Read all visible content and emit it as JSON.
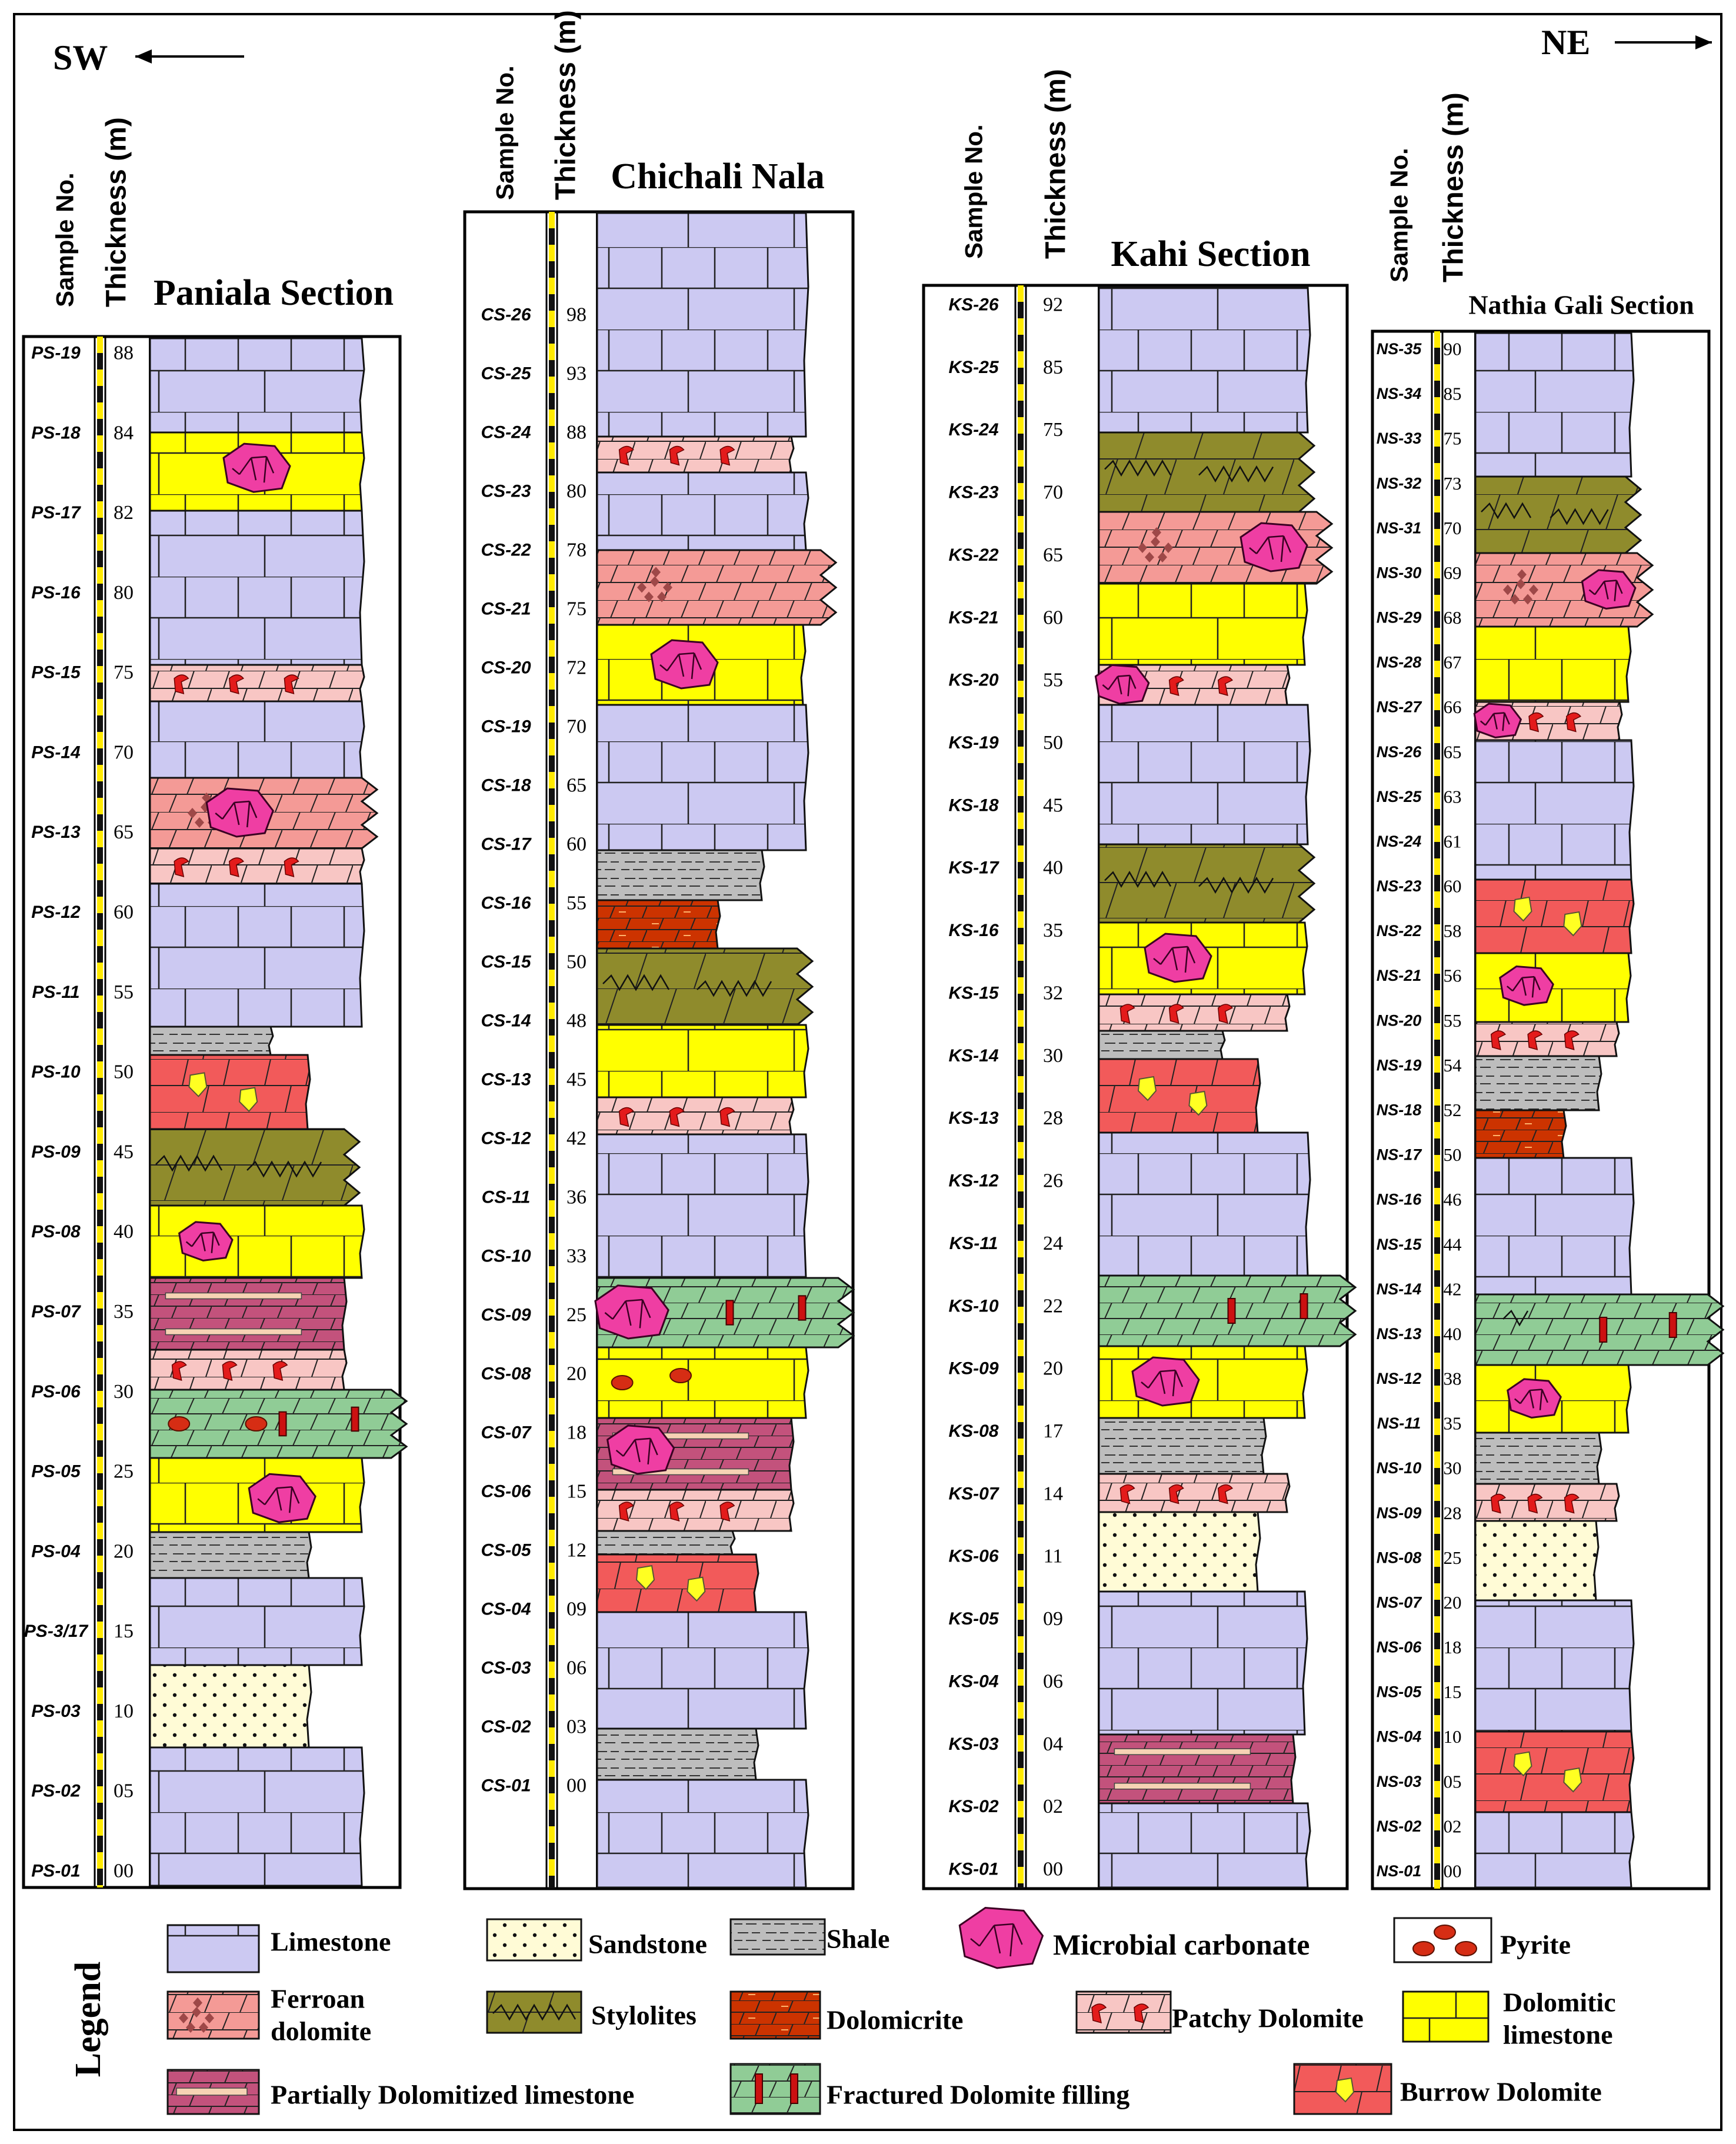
{
  "direction": {
    "left": "SW",
    "right": "NE"
  },
  "header_labels": {
    "sample_no": "Sample No.",
    "thickness": "Thickness (m)"
  },
  "colors": {
    "limestone": "#ccc9f2",
    "dolomitic_limestone": "#ffff00",
    "ferroan_dolomite": "#f49a96",
    "patchy_dolomite": "#f8c6c4",
    "stylolites": "#8f8b2c",
    "dolomicrite": "#cc3300",
    "fractured": "#90cc96",
    "burrow": "#f25a5a",
    "partial": "#c3527c",
    "sandstone": "#fffbd6",
    "shale": "#bdbdbd",
    "microbial": "#ef3ea3",
    "pyrite": "#d62d14",
    "patch_mark": "#e31b1b",
    "burrow_mark": "#ffff22",
    "ferroan_mark": "#9e4848",
    "fracture_mark": "#cc1111",
    "partial_band": "#f6d2b4"
  },
  "sections": [
    {
      "name": "Paniala Section",
      "samples": [
        {
          "id": "PS-19",
          "t": "88"
        },
        {
          "id": "PS-18",
          "t": "84"
        },
        {
          "id": "PS-17",
          "t": "82"
        },
        {
          "id": "PS-16",
          "t": "80"
        },
        {
          "id": "PS-15",
          "t": "75"
        },
        {
          "id": "PS-14",
          "t": "70"
        },
        {
          "id": "PS-13",
          "t": "65"
        },
        {
          "id": "PS-12",
          "t": "60"
        },
        {
          "id": "PS-11",
          "t": "55"
        },
        {
          "id": "PS-10",
          "t": "50"
        },
        {
          "id": "PS-09",
          "t": "45"
        },
        {
          "id": "PS-08",
          "t": "40"
        },
        {
          "id": "PS-07",
          "t": "35"
        },
        {
          "id": "PS-06",
          "t": "30"
        },
        {
          "id": "PS-05",
          "t": "25"
        },
        {
          "id": "PS-04",
          "t": "20"
        },
        {
          "id": "PS-3/17",
          "t": "15"
        },
        {
          "id": "PS-03",
          "t": "10"
        },
        {
          "id": "PS-02",
          "t": "05"
        },
        {
          "id": "PS-01",
          "t": "00"
        }
      ]
    },
    {
      "name": "Chichali Nala",
      "samples": [
        {
          "id": "CS-26",
          "t": "98"
        },
        {
          "id": "CS-25",
          "t": "93"
        },
        {
          "id": "CS-24",
          "t": "88"
        },
        {
          "id": "CS-23",
          "t": "80"
        },
        {
          "id": "CS-22",
          "t": "78"
        },
        {
          "id": "CS-21",
          "t": "75"
        },
        {
          "id": "CS-20",
          "t": "72"
        },
        {
          "id": "CS-19",
          "t": "70"
        },
        {
          "id": "CS-18",
          "t": "65"
        },
        {
          "id": "CS-17",
          "t": "60"
        },
        {
          "id": "CS-16",
          "t": "55"
        },
        {
          "id": "CS-15",
          "t": "50"
        },
        {
          "id": "CS-14",
          "t": "48"
        },
        {
          "id": "CS-13",
          "t": "45"
        },
        {
          "id": "CS-12",
          "t": "42"
        },
        {
          "id": "CS-11",
          "t": "36"
        },
        {
          "id": "CS-10",
          "t": "33"
        },
        {
          "id": "CS-09",
          "t": "25"
        },
        {
          "id": "CS-08",
          "t": "20"
        },
        {
          "id": "CS-07",
          "t": "18"
        },
        {
          "id": "CS-06",
          "t": "15"
        },
        {
          "id": "CS-05",
          "t": "12"
        },
        {
          "id": "CS-04",
          "t": "09"
        },
        {
          "id": "CS-03",
          "t": "06"
        },
        {
          "id": "CS-02",
          "t": "03"
        },
        {
          "id": "CS-01",
          "t": "00"
        }
      ]
    },
    {
      "name": "Kahi Section",
      "samples": [
        {
          "id": "KS-26",
          "t": "92"
        },
        {
          "id": "KS-25",
          "t": "85"
        },
        {
          "id": "KS-24",
          "t": "75"
        },
        {
          "id": "KS-23",
          "t": "70"
        },
        {
          "id": "KS-22",
          "t": "65"
        },
        {
          "id": "KS-21",
          "t": "60"
        },
        {
          "id": "KS-20",
          "t": "55"
        },
        {
          "id": "KS-19",
          "t": "50"
        },
        {
          "id": "KS-18",
          "t": "45"
        },
        {
          "id": "KS-17",
          "t": "40"
        },
        {
          "id": "KS-16",
          "t": "35"
        },
        {
          "id": "KS-15",
          "t": "32"
        },
        {
          "id": "KS-14",
          "t": "30"
        },
        {
          "id": "KS-13",
          "t": "28"
        },
        {
          "id": "KS-12",
          "t": "26"
        },
        {
          "id": "KS-11",
          "t": "24"
        },
        {
          "id": "KS-10",
          "t": "22"
        },
        {
          "id": "KS-09",
          "t": "20"
        },
        {
          "id": "KS-08",
          "t": "17"
        },
        {
          "id": "KS-07",
          "t": "14"
        },
        {
          "id": "KS-06",
          "t": "11"
        },
        {
          "id": "KS-05",
          "t": "09"
        },
        {
          "id": "KS-04",
          "t": "06"
        },
        {
          "id": "KS-03",
          "t": "04"
        },
        {
          "id": "KS-02",
          "t": "02"
        },
        {
          "id": "KS-01",
          "t": "00"
        }
      ]
    },
    {
      "name": "Nathia Gali Section",
      "samples": [
        {
          "id": "NS-35",
          "t": "90"
        },
        {
          "id": "NS-34",
          "t": "85"
        },
        {
          "id": "NS-33",
          "t": "75"
        },
        {
          "id": "NS-32",
          "t": "73"
        },
        {
          "id": "NS-31",
          "t": "70"
        },
        {
          "id": "NS-30",
          "t": "69"
        },
        {
          "id": "NS-29",
          "t": "68"
        },
        {
          "id": "NS-28",
          "t": "67"
        },
        {
          "id": "NS-27",
          "t": "66"
        },
        {
          "id": "NS-26",
          "t": "65"
        },
        {
          "id": "NS-25",
          "t": "63"
        },
        {
          "id": "NS-24",
          "t": "61"
        },
        {
          "id": "NS-23",
          "t": "60"
        },
        {
          "id": "NS-22",
          "t": "58"
        },
        {
          "id": "NS-21",
          "t": "56"
        },
        {
          "id": "NS-20",
          "t": "55"
        },
        {
          "id": "NS-19",
          "t": "54"
        },
        {
          "id": "NS-18",
          "t": "52"
        },
        {
          "id": "NS-17",
          "t": "50"
        },
        {
          "id": "NS-16",
          "t": "46"
        },
        {
          "id": "NS-15",
          "t": "44"
        },
        {
          "id": "NS-14",
          "t": "42"
        },
        {
          "id": "NS-13",
          "t": "40"
        },
        {
          "id": "NS-12",
          "t": "38"
        },
        {
          "id": "NS-11",
          "t": "35"
        },
        {
          "id": "NS-10",
          "t": "30"
        },
        {
          "id": "NS-09",
          "t": "28"
        },
        {
          "id": "NS-08",
          "t": "25"
        },
        {
          "id": "NS-07",
          "t": "20"
        },
        {
          "id": "NS-06",
          "t": "18"
        },
        {
          "id": "NS-05",
          "t": "15"
        },
        {
          "id": "NS-04",
          "t": "10"
        },
        {
          "id": "NS-03",
          "t": "05"
        },
        {
          "id": "NS-02",
          "t": "02"
        },
        {
          "id": "NS-01",
          "t": "00"
        }
      ]
    }
  ],
  "legend": {
    "title": "Legend",
    "items": {
      "limestone": "Limestone",
      "sandstone": "Sandstone",
      "shale": "Shale",
      "microbial": "Microbial carbonate",
      "pyrite": "Pyrite",
      "ferroan_1": "Ferroan",
      "ferroan_2": "dolomite",
      "stylolites": "Stylolites",
      "dolomicrite": "Dolomicrite",
      "patchy": "Patchy Dolomite",
      "dolomitic_1": "Dolomitic",
      "dolomitic_2": "limestone",
      "partial": "Partially Dolomitized limestone",
      "fractured": "Fractured Dolomite filling",
      "burrow": "Burrow Dolomite"
    }
  }
}
